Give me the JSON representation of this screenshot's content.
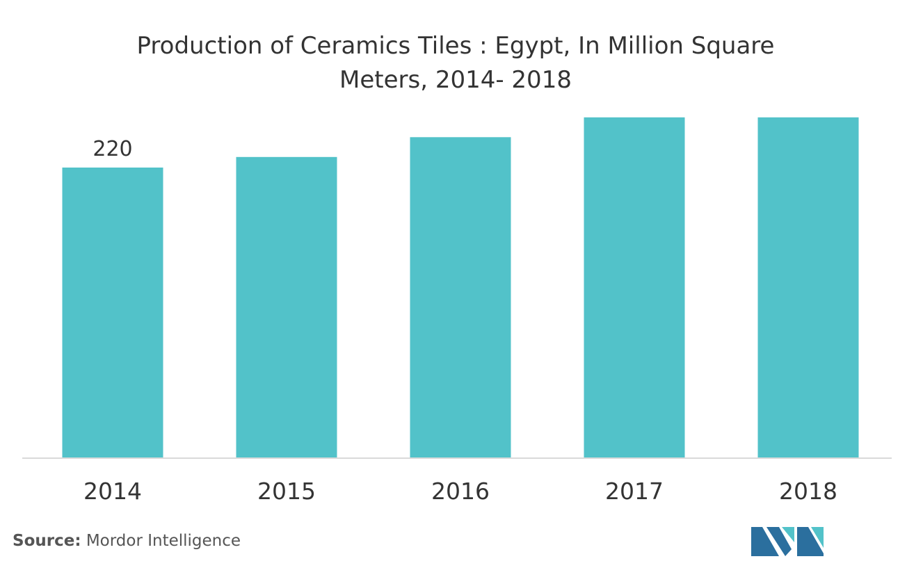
{
  "chart_data": {
    "type": "bar",
    "title": "Production of Ceramics Tiles : Egypt, In Million Square Meters, 2014- 2018",
    "title_lines": [
      "Production of Ceramics Tiles : Egypt, In Million Square",
      "Meters, 2014- 2018"
    ],
    "categories": [
      "2014",
      "2015",
      "2016",
      "2017",
      "2018"
    ],
    "values": [
      220,
      228,
      243,
      258,
      258
    ],
    "data_labels": [
      "220",
      null,
      null,
      null,
      null
    ],
    "xlabel": "",
    "ylabel": "",
    "ylim": [
      0,
      300
    ],
    "y_axis_visible": false,
    "grid": false,
    "legend": "none",
    "bar_color": "#52c2c9",
    "axis_color": "#d9d9d9",
    "text_color": "#333333"
  },
  "footer": {
    "source_label": "Source:",
    "source_text": " Mordor Intelligence"
  },
  "logo": {
    "name": "mordor-intelligence-logo",
    "colors": [
      "#2b6f9e",
      "#52c2c9"
    ]
  }
}
